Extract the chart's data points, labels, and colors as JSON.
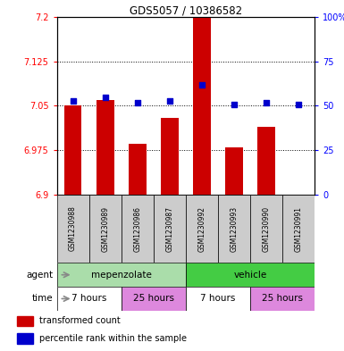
{
  "title": "GDS5057 / 10386582",
  "samples": [
    "GSM1230988",
    "GSM1230989",
    "GSM1230986",
    "GSM1230987",
    "GSM1230992",
    "GSM1230993",
    "GSM1230990",
    "GSM1230991"
  ],
  "bar_values": [
    7.05,
    7.06,
    6.985,
    7.03,
    7.2,
    6.98,
    7.015,
    6.9
  ],
  "bar_base": 6.9,
  "percentile_values": [
    53,
    55,
    52,
    53,
    62,
    51,
    52,
    51
  ],
  "ylim_left": [
    6.9,
    7.2
  ],
  "ylim_right": [
    0,
    100
  ],
  "yticks_left": [
    6.9,
    6.975,
    7.05,
    7.125,
    7.2
  ],
  "ytick_labels_left": [
    "6.9",
    "6.975",
    "7.05",
    "7.125",
    "7.2"
  ],
  "yticks_right": [
    0,
    25,
    50,
    75,
    100
  ],
  "ytick_labels_right": [
    "0",
    "25",
    "50",
    "75",
    "100%"
  ],
  "bar_color": "#cc0000",
  "percentile_color": "#0000cc",
  "bar_width": 0.55,
  "agent_labels": [
    {
      "text": "mepenzolate",
      "start": 0,
      "end": 4,
      "color": "#aaddaa"
    },
    {
      "text": "vehicle",
      "start": 4,
      "end": 8,
      "color": "#44cc44"
    }
  ],
  "time_labels": [
    {
      "text": "7 hours",
      "start": 0,
      "end": 2,
      "color": "#ffffff"
    },
    {
      "text": "25 hours",
      "start": 2,
      "end": 4,
      "color": "#dd88dd"
    },
    {
      "text": "7 hours",
      "start": 4,
      "end": 6,
      "color": "#ffffff"
    },
    {
      "text": "25 hours",
      "start": 6,
      "end": 8,
      "color": "#dd88dd"
    }
  ],
  "legend_items": [
    {
      "label": "transformed count",
      "color": "#cc0000"
    },
    {
      "label": "percentile rank within the sample",
      "color": "#0000cc"
    }
  ],
  "xlabel_agent": "agent",
  "xlabel_time": "time",
  "sample_area_color": "#cccccc",
  "bg_color": "#ffffff"
}
